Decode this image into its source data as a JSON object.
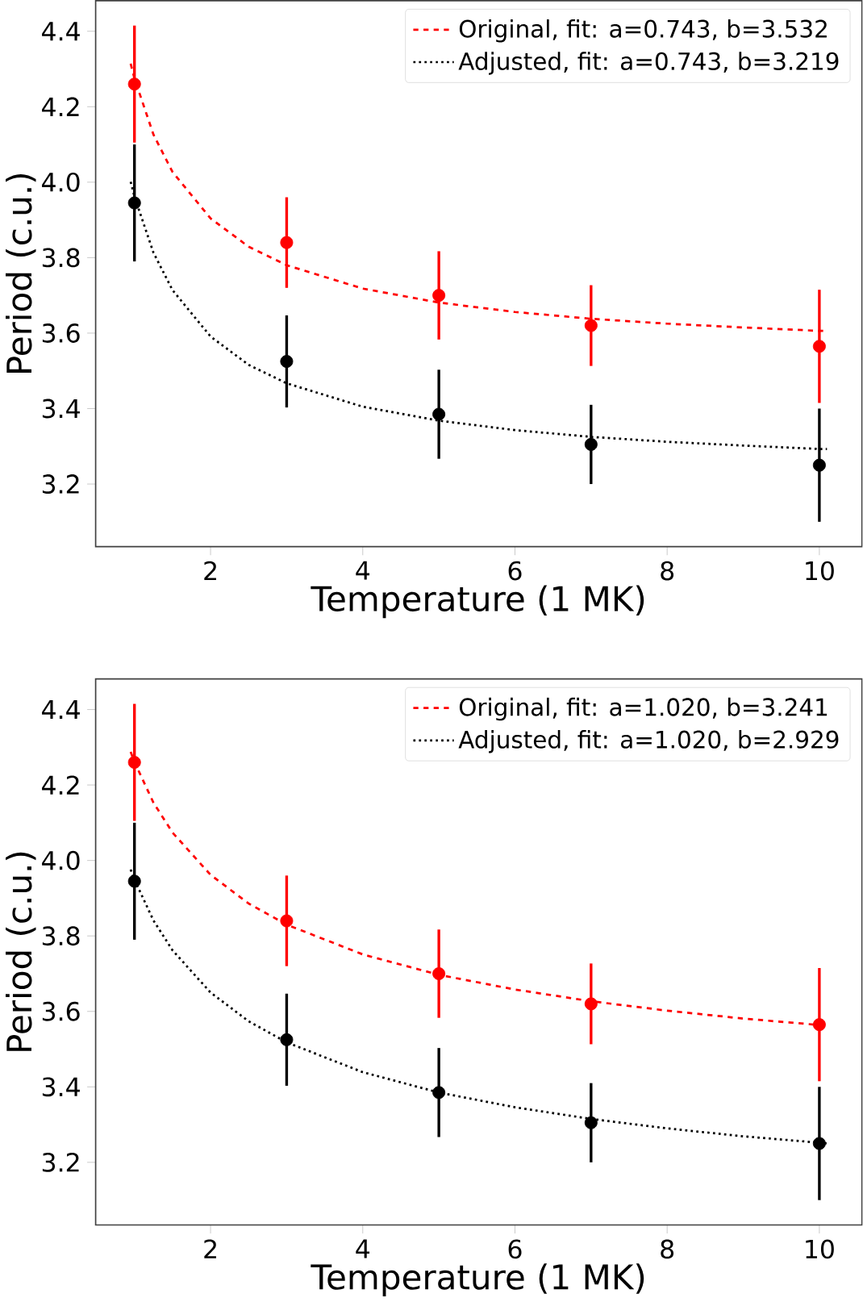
{
  "chart_data": [
    {
      "type": "scatter",
      "xlabel": "Temperature (1 MK)",
      "ylabel": "Period (c.u.)",
      "legend": "top right",
      "xlim": [
        0.49,
        10.56
      ],
      "ylim": [
        3.034,
        4.481
      ],
      "xticks": [
        2,
        4,
        6,
        8,
        10
      ],
      "yticks": [
        {
          "value": 3.2,
          "label": "3.2"
        },
        {
          "value": 3.4,
          "label": "3.4"
        },
        {
          "value": 3.6,
          "label": "3.6"
        },
        {
          "value": 3.8,
          "label": "3.8"
        },
        {
          "value": 4.0,
          "label": "4.0"
        },
        {
          "value": 4.2,
          "label": "4.2"
        },
        {
          "value": 4.4,
          "label": "4.4"
        }
      ],
      "x": [
        1,
        3,
        5,
        7,
        10
      ],
      "series": [
        {
          "color": "#ff0000",
          "marker": "circle",
          "values": [
            4.26,
            3.84,
            3.7,
            3.62,
            3.565
          ],
          "errors": [
            0.155,
            0.12,
            0.117,
            0.107,
            0.15
          ]
        },
        {
          "color": "#000000",
          "marker": "circle",
          "values": [
            3.945,
            3.525,
            3.385,
            3.305,
            3.25
          ],
          "errors": [
            0.155,
            0.122,
            0.118,
            0.105,
            0.15
          ]
        },
        {
          "type": "line",
          "name": "Original, fit: a=0.743, b=3.532",
          "color": "#ff0000",
          "line_style": "dashed",
          "marker": "none",
          "x": [
            0.95,
            1,
            1.25,
            1.5,
            2,
            2.5,
            3,
            4,
            5,
            6,
            7,
            8,
            9,
            10,
            10.1
          ],
          "values": [
            4.314,
            4.275,
            4.126,
            4.027,
            3.904,
            3.829,
            3.78,
            3.718,
            3.681,
            3.656,
            3.638,
            3.625,
            3.615,
            3.606,
            3.606
          ]
        },
        {
          "type": "line",
          "name": "Adjusted, fit: a=0.743, b=3.219",
          "color": "#000000",
          "line_style": "dotted",
          "marker": "none",
          "x": [
            0.95,
            1,
            1.25,
            1.5,
            2,
            2.5,
            3,
            4,
            5,
            6,
            7,
            8,
            9,
            10,
            10.1
          ],
          "values": [
            4.001,
            3.962,
            3.813,
            3.714,
            3.591,
            3.516,
            3.467,
            3.405,
            3.368,
            3.343,
            3.325,
            3.312,
            3.302,
            3.293,
            3.293
          ]
        }
      ]
    },
    {
      "type": "scatter",
      "xlabel": "Temperature (1 MK)",
      "ylabel": "Period (c.u.)",
      "legend": "top right",
      "xlim": [
        0.49,
        10.56
      ],
      "ylim": [
        3.034,
        4.481
      ],
      "xticks": [
        2,
        4,
        6,
        8,
        10
      ],
      "yticks": [
        {
          "value": 3.2,
          "label": "3.2"
        },
        {
          "value": 3.4,
          "label": "3.4"
        },
        {
          "value": 3.6,
          "label": "3.6"
        },
        {
          "value": 3.8,
          "label": "3.8"
        },
        {
          "value": 4.0,
          "label": "4.0"
        },
        {
          "value": 4.2,
          "label": "4.2"
        },
        {
          "value": 4.4,
          "label": "4.4"
        }
      ],
      "x": [
        1,
        3,
        5,
        7,
        10
      ],
      "series": [
        {
          "color": "#ff0000",
          "marker": "circle",
          "values": [
            4.26,
            3.84,
            3.7,
            3.62,
            3.565
          ],
          "errors": [
            0.155,
            0.12,
            0.117,
            0.107,
            0.15
          ]
        },
        {
          "color": "#000000",
          "marker": "circle",
          "values": [
            3.945,
            3.525,
            3.385,
            3.305,
            3.25
          ],
          "errors": [
            0.155,
            0.122,
            0.118,
            0.105,
            0.15
          ]
        },
        {
          "type": "line",
          "name": "Original, fit: a=1.020, b=3.241",
          "color": "#ff0000",
          "line_style": "dashed",
          "marker": "none",
          "x": [
            0.95,
            1,
            1.25,
            1.5,
            2,
            2.5,
            3,
            4,
            5,
            6,
            7,
            8,
            9,
            10,
            10.1
          ],
          "values": [
            4.288,
            4.261,
            4.153,
            4.074,
            3.962,
            3.886,
            3.83,
            3.751,
            3.697,
            3.658,
            3.627,
            3.602,
            3.581,
            3.564,
            3.562
          ]
        },
        {
          "type": "line",
          "name": "Adjusted, fit: a=1.020, b=2.929",
          "color": "#000000",
          "line_style": "dotted",
          "marker": "none",
          "x": [
            0.95,
            1,
            1.25,
            1.5,
            2,
            2.5,
            3,
            4,
            5,
            6,
            7,
            8,
            9,
            10,
            10.1
          ],
          "values": [
            3.976,
            3.949,
            3.841,
            3.762,
            3.65,
            3.574,
            3.518,
            3.439,
            3.385,
            3.346,
            3.315,
            3.29,
            3.269,
            3.252,
            3.25
          ]
        }
      ]
    }
  ]
}
